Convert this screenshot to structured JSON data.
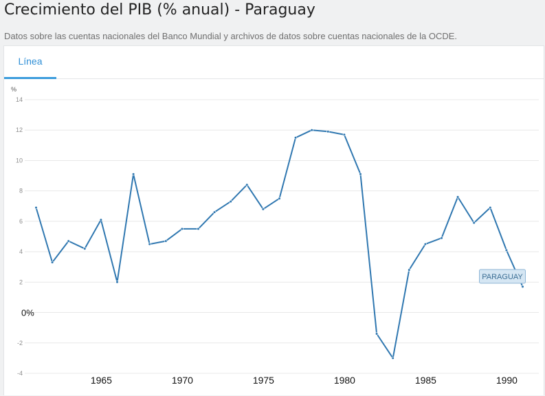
{
  "header": {
    "title": "Crecimiento del PIB (% anual) - Paraguay",
    "subtitle": "Datos sobre las cuentas nacionales del Banco Mundial y archivos de datos sobre cuentas nacionales de la OCDE."
  },
  "tabs": [
    {
      "label": "Línea",
      "active": true
    }
  ],
  "colors": {
    "accent": "#3a9bdc",
    "series": "#2f77b0"
  },
  "chart_data": {
    "type": "line",
    "unit_label": "%",
    "ylim": [
      -4,
      14
    ],
    "xlim": [
      1961,
      1991.5
    ],
    "grid": true,
    "y_ticks": [
      {
        "value": 14,
        "label": "14"
      },
      {
        "value": 12,
        "label": "12"
      },
      {
        "value": 10,
        "label": "10"
      },
      {
        "value": 8,
        "label": "8"
      },
      {
        "value": 6,
        "label": "6"
      },
      {
        "value": 4,
        "label": "4"
      },
      {
        "value": 2,
        "label": "2"
      },
      {
        "value": 0,
        "label": "0%"
      },
      {
        "value": -2,
        "label": "-2"
      },
      {
        "value": -4,
        "label": "-4"
      }
    ],
    "x_ticks": [
      {
        "value": 1965,
        "label": "1965"
      },
      {
        "value": 1970,
        "label": "1970"
      },
      {
        "value": 1975,
        "label": "1975"
      },
      {
        "value": 1980,
        "label": "1980"
      },
      {
        "value": 1985,
        "label": "1985"
      },
      {
        "value": 1990,
        "label": "1990"
      }
    ],
    "series": [
      {
        "name": "PARAGUAY",
        "x": [
          1961,
          1962,
          1963,
          1964,
          1965,
          1966,
          1967,
          1968,
          1969,
          1970,
          1971,
          1972,
          1973,
          1974,
          1975,
          1976,
          1977,
          1978,
          1979,
          1980,
          1981,
          1982,
          1983,
          1984,
          1985,
          1986,
          1987,
          1988,
          1989,
          1990,
          1991
        ],
        "values": [
          6.9,
          3.3,
          4.7,
          4.2,
          6.1,
          2.0,
          9.1,
          4.5,
          4.7,
          5.5,
          5.5,
          6.6,
          7.3,
          8.4,
          6.8,
          7.5,
          11.5,
          12.0,
          11.9,
          11.7,
          9.1,
          -1.4,
          -3.0,
          2.8,
          4.5,
          4.9,
          7.6,
          5.9,
          6.9,
          4.1,
          1.7
        ]
      }
    ]
  }
}
